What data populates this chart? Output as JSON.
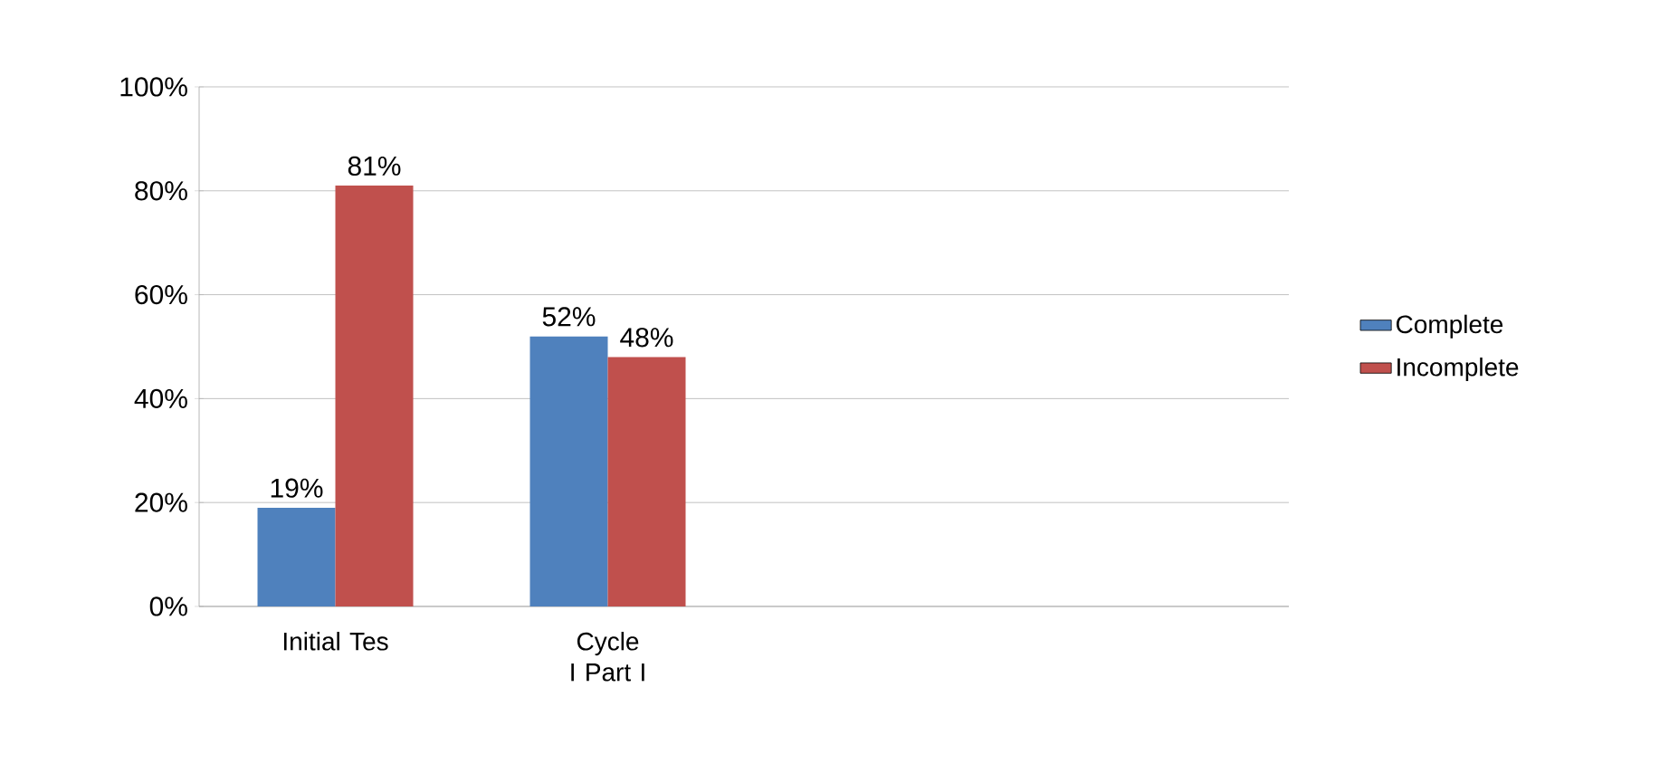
{
  "chart_data": {
    "type": "bar",
    "categories": [
      "Initial Tes",
      "Cycle I Part I",
      null,
      null
    ],
    "series": [
      {
        "name": "Complete",
        "color": "#4f81bd",
        "values": [
          19,
          52,
          null,
          null
        ],
        "value_labels": [
          "19%",
          "52%",
          null,
          null
        ]
      },
      {
        "name": "Incomplete",
        "color": "#c0504d",
        "values": [
          81,
          48,
          null,
          null
        ],
        "value_labels": [
          "81%",
          "48%",
          null,
          null
        ]
      }
    ],
    "ylim": [
      0,
      100
    ],
    "yticks": [
      {
        "value": 0,
        "label": "0%"
      },
      {
        "value": 20,
        "label": "20%"
      },
      {
        "value": 40,
        "label": "40%"
      },
      {
        "value": 60,
        "label": "60%"
      },
      {
        "value": 80,
        "label": "80%"
      },
      {
        "value": 100,
        "label": "100%"
      }
    ],
    "grid": "y",
    "legend": "right"
  }
}
